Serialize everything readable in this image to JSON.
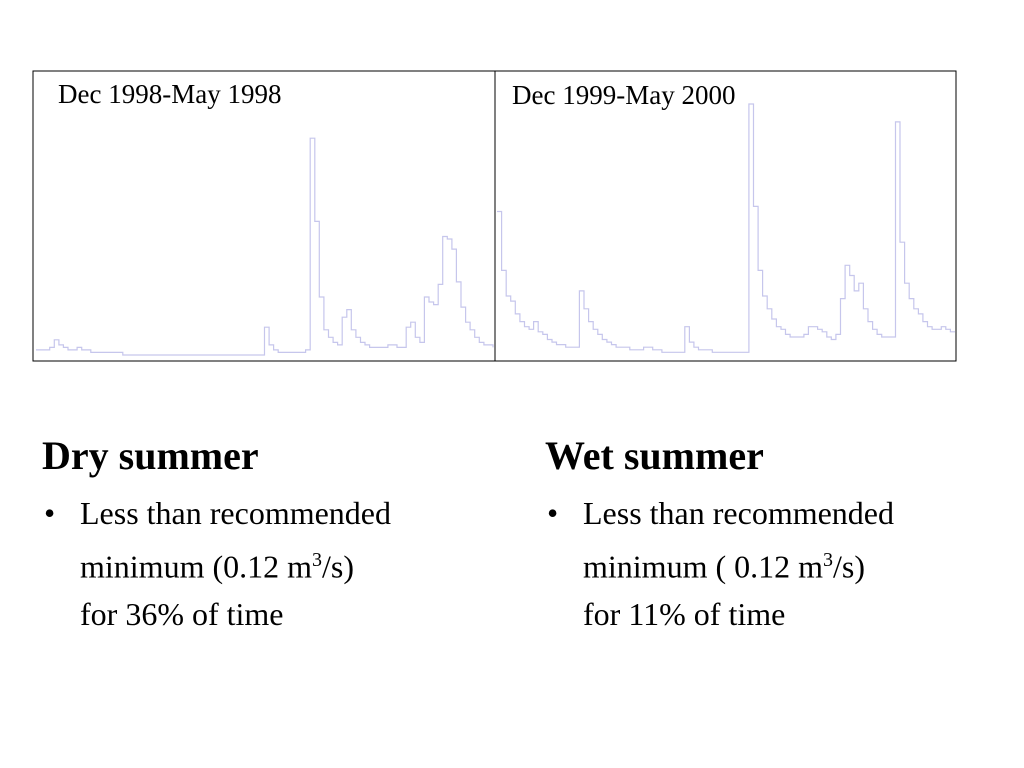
{
  "chart_data": [
    {
      "type": "line",
      "title": "Dec 1998-May 1998",
      "color": "#c6c6ec",
      "ylim": [
        0,
        1
      ],
      "x": [
        0,
        1,
        2,
        3,
        4,
        5,
        6,
        7,
        8,
        9,
        10,
        11,
        12,
        13,
        14,
        15,
        16,
        17,
        18,
        19,
        20,
        21,
        22,
        23,
        24,
        25,
        26,
        27,
        28,
        29,
        30,
        31,
        32,
        33,
        34,
        35,
        36,
        37,
        38,
        39,
        40,
        41,
        42,
        43,
        44,
        45,
        46,
        47,
        48,
        49,
        50,
        51,
        52,
        53,
        54,
        55,
        56,
        57,
        58,
        59,
        60,
        61,
        62,
        63,
        64,
        65,
        66,
        67,
        68,
        69,
        70,
        71,
        72,
        73,
        74,
        75,
        76,
        77,
        78,
        79,
        80,
        81,
        82,
        83,
        84,
        85,
        86,
        87,
        88,
        89,
        90,
        91,
        92,
        93,
        94,
        95,
        96,
        97,
        98,
        99,
        100
      ],
      "values": [
        0.04,
        0.04,
        0.04,
        0.05,
        0.08,
        0.06,
        0.05,
        0.04,
        0.04,
        0.05,
        0.04,
        0.04,
        0.03,
        0.03,
        0.03,
        0.03,
        0.03,
        0.03,
        0.03,
        0.02,
        0.02,
        0.02,
        0.02,
        0.02,
        0.02,
        0.02,
        0.02,
        0.02,
        0.02,
        0.02,
        0.02,
        0.02,
        0.02,
        0.02,
        0.02,
        0.02,
        0.02,
        0.02,
        0.02,
        0.02,
        0.02,
        0.02,
        0.02,
        0.02,
        0.02,
        0.02,
        0.02,
        0.02,
        0.02,
        0.02,
        0.13,
        0.06,
        0.04,
        0.03,
        0.03,
        0.03,
        0.03,
        0.03,
        0.03,
        0.04,
        0.88,
        0.55,
        0.25,
        0.12,
        0.09,
        0.07,
        0.06,
        0.17,
        0.2,
        0.12,
        0.09,
        0.07,
        0.06,
        0.05,
        0.05,
        0.05,
        0.05,
        0.06,
        0.06,
        0.05,
        0.05,
        0.13,
        0.15,
        0.09,
        0.07,
        0.25,
        0.23,
        0.22,
        0.3,
        0.49,
        0.48,
        0.44,
        0.31,
        0.21,
        0.15,
        0.12,
        0.09,
        0.07,
        0.06,
        0.06,
        0.05
      ]
    },
    {
      "type": "line",
      "title": "Dec 1999-May 2000",
      "color": "#c6c6ec",
      "ylim": [
        0,
        1
      ],
      "x": [
        0,
        1,
        2,
        3,
        4,
        5,
        6,
        7,
        8,
        9,
        10,
        11,
        12,
        13,
        14,
        15,
        16,
        17,
        18,
        19,
        20,
        21,
        22,
        23,
        24,
        25,
        26,
        27,
        28,
        29,
        30,
        31,
        32,
        33,
        34,
        35,
        36,
        37,
        38,
        39,
        40,
        41,
        42,
        43,
        44,
        45,
        46,
        47,
        48,
        49,
        50,
        51,
        52,
        53,
        54,
        55,
        56,
        57,
        58,
        59,
        60,
        61,
        62,
        63,
        64,
        65,
        66,
        67,
        68,
        69,
        70,
        71,
        72,
        73,
        74,
        75,
        76,
        77,
        78,
        79,
        80,
        81,
        82,
        83,
        84,
        85,
        86,
        87,
        88,
        89,
        90,
        91,
        92,
        93,
        94,
        95,
        96,
        97,
        98,
        99,
        100
      ],
      "values": [
        0.58,
        0.35,
        0.25,
        0.23,
        0.18,
        0.15,
        0.13,
        0.12,
        0.15,
        0.11,
        0.1,
        0.08,
        0.07,
        0.06,
        0.06,
        0.05,
        0.05,
        0.05,
        0.27,
        0.2,
        0.15,
        0.12,
        0.1,
        0.08,
        0.07,
        0.06,
        0.05,
        0.05,
        0.05,
        0.04,
        0.04,
        0.04,
        0.05,
        0.05,
        0.04,
        0.04,
        0.03,
        0.03,
        0.03,
        0.03,
        0.03,
        0.13,
        0.07,
        0.05,
        0.04,
        0.04,
        0.04,
        0.03,
        0.03,
        0.03,
        0.03,
        0.03,
        0.03,
        0.03,
        0.03,
        1.0,
        0.6,
        0.35,
        0.25,
        0.2,
        0.16,
        0.13,
        0.12,
        0.1,
        0.09,
        0.09,
        0.09,
        0.1,
        0.13,
        0.13,
        0.12,
        0.11,
        0.09,
        0.08,
        0.1,
        0.24,
        0.37,
        0.33,
        0.27,
        0.3,
        0.2,
        0.15,
        0.12,
        0.1,
        0.09,
        0.09,
        0.09,
        0.93,
        0.46,
        0.3,
        0.24,
        0.2,
        0.18,
        0.15,
        0.13,
        0.12,
        0.12,
        0.13,
        0.12,
        0.11,
        0.11
      ]
    }
  ],
  "left_column": {
    "heading": "Dry summer",
    "bullet_line1": "Less than recommended",
    "bullet_line2_pre": "minimum (0.12 m",
    "bullet_line2_sup": "3",
    "bullet_line2_post": "/s)",
    "bullet_line3": "for 36% of time"
  },
  "right_column": {
    "heading": "Wet summer",
    "bullet_line1": "Less than recommended",
    "bullet_line2_pre": "minimum ( 0.12 m",
    "bullet_line2_sup": "3",
    "bullet_line2_post": "/s)",
    "bullet_line3": "for 11% of time"
  }
}
